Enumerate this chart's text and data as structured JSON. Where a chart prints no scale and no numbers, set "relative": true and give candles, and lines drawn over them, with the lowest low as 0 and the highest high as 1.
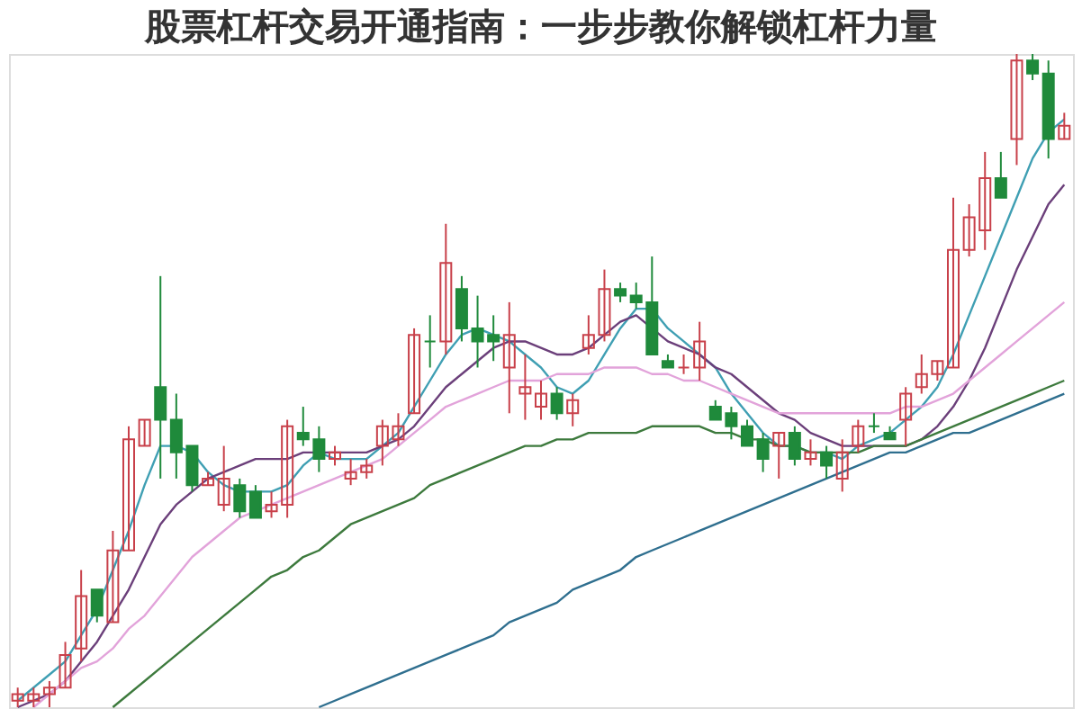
{
  "chart_data": {
    "type": "candlestick",
    "title": "股票杠杆交易开通指南：一步步教你解锁杠杆力量",
    "relative": true,
    "categories": [
      null,
      null,
      null,
      null,
      null,
      null,
      null,
      null,
      null,
      null,
      null,
      null,
      null,
      null,
      null,
      null,
      null,
      null,
      null,
      null,
      null,
      null,
      null,
      null,
      null,
      null,
      null,
      null,
      null,
      null,
      null,
      null,
      null,
      null,
      null,
      null,
      null,
      null,
      null,
      null,
      null,
      null,
      null,
      null,
      null,
      null,
      null,
      null,
      null,
      null,
      null,
      null,
      null,
      null,
      null,
      null,
      null,
      null,
      null,
      null,
      null,
      null,
      null,
      null,
      null,
      null,
      null
    ],
    "ohlc": [
      [
        0.01,
        0.03,
        0,
        0.02
      ],
      [
        0.01,
        0.03,
        0,
        0.02
      ],
      [
        0.02,
        0.04,
        0,
        0.03
      ],
      [
        0.03,
        0.1,
        0.03,
        0.08
      ],
      [
        0.09,
        0.21,
        0.07,
        0.17
      ],
      [
        0.18,
        0.18,
        0.13,
        0.14
      ],
      [
        0.13,
        0.27,
        0.13,
        0.24
      ],
      [
        0.24,
        0.43,
        0.24,
        0.41
      ],
      [
        0.4,
        0.44,
        0.4,
        0.44
      ],
      [
        0.49,
        0.66,
        0.35,
        0.44
      ],
      [
        0.44,
        0.48,
        0.35,
        0.39
      ],
      [
        0.4,
        0.4,
        0.33,
        0.34
      ],
      [
        0.34,
        0.36,
        0.34,
        0.35
      ],
      [
        0.31,
        0.4,
        0.3,
        0.35
      ],
      [
        0.34,
        0.35,
        0.29,
        0.3
      ],
      [
        0.33,
        0.34,
        0.29,
        0.29
      ],
      [
        0.3,
        0.33,
        0.29,
        0.31
      ],
      [
        0.31,
        0.44,
        0.29,
        0.43
      ],
      [
        0.42,
        0.46,
        0.4,
        0.41
      ],
      [
        0.41,
        0.43,
        0.36,
        0.38
      ],
      [
        0.38,
        0.4,
        0.37,
        0.39
      ],
      [
        0.35,
        0.38,
        0.34,
        0.36
      ],
      [
        0.36,
        0.38,
        0.35,
        0.37
      ],
      [
        0.4,
        0.44,
        0.37,
        0.43
      ],
      [
        0.41,
        0.45,
        0.4,
        0.43
      ],
      [
        0.45,
        0.58,
        0.45,
        0.57
      ],
      [
        0.56,
        0.6,
        0.52,
        0.56
      ],
      [
        0.56,
        0.74,
        0.54,
        0.68
      ],
      [
        0.64,
        0.66,
        0.56,
        0.58
      ],
      [
        0.58,
        0.63,
        0.52,
        0.56
      ],
      [
        0.57,
        0.6,
        0.53,
        0.56
      ],
      [
        0.52,
        0.62,
        0.45,
        0.57
      ],
      [
        0.48,
        0.54,
        0.44,
        0.49
      ],
      [
        0.46,
        0.5,
        0.44,
        0.48
      ],
      [
        0.48,
        0.49,
        0.44,
        0.45
      ],
      [
        0.45,
        0.48,
        0.43,
        0.47
      ],
      [
        0.55,
        0.6,
        0.54,
        0.57
      ],
      [
        0.57,
        0.67,
        0.56,
        0.64
      ],
      [
        0.64,
        0.65,
        0.62,
        0.63
      ],
      [
        0.63,
        0.65,
        0.61,
        0.62
      ],
      [
        0.62,
        0.69,
        0.54,
        0.54
      ],
      [
        0.53,
        0.54,
        0.52,
        0.52
      ],
      [
        0.52,
        0.54,
        0.51,
        0.52
      ],
      [
        0.52,
        0.59,
        0.5,
        0.56
      ],
      [
        0.46,
        0.47,
        0.44,
        0.44
      ],
      [
        0.45,
        0.46,
        0.41,
        0.43
      ],
      [
        0.43,
        0.44,
        0.4,
        0.4
      ],
      [
        0.41,
        0.42,
        0.36,
        0.38
      ],
      [
        0.4,
        0.42,
        0.35,
        0.42
      ],
      [
        0.42,
        0.43,
        0.37,
        0.38
      ],
      [
        0.38,
        0.41,
        0.37,
        0.39
      ],
      [
        0.39,
        0.4,
        0.35,
        0.37
      ],
      [
        0.35,
        0.41,
        0.33,
        0.39
      ],
      [
        0.4,
        0.44,
        0.39,
        0.43
      ],
      [
        0.43,
        0.45,
        0.42,
        0.43
      ],
      [
        0.42,
        0.43,
        0.41,
        0.41
      ],
      [
        0.44,
        0.49,
        0.4,
        0.48
      ],
      [
        0.49,
        0.54,
        0.48,
        0.51
      ],
      [
        0.51,
        0.53,
        0.5,
        0.53
      ],
      [
        0.52,
        0.78,
        0.52,
        0.7
      ],
      [
        0.7,
        0.77,
        0.69,
        0.75
      ],
      [
        0.73,
        0.85,
        0.7,
        0.81
      ],
      [
        0.81,
        0.85,
        0.78,
        0.78
      ],
      [
        0.87,
        1,
        0.83,
        0.99
      ],
      [
        0.99,
        1,
        0.96,
        0.97
      ],
      [
        0.97,
        0.99,
        0.84,
        0.87
      ],
      [
        0.87,
        0.91,
        0.87,
        0.89
      ]
    ],
    "colors": [
      "#c8404a",
      "#c8404a",
      "#c8404a",
      "#c8404a",
      "#c8404a",
      "#1f8a3b",
      "#c8404a",
      "#c8404a",
      "#c8404a",
      "#1f8a3b",
      "#1f8a3b",
      "#1f8a3b",
      "#c8404a",
      "#c8404a",
      "#1f8a3b",
      "#1f8a3b",
      "#c8404a",
      "#c8404a",
      "#1f8a3b",
      "#1f8a3b",
      "#c8404a",
      "#c8404a",
      "#c8404a",
      "#c8404a",
      "#c8404a",
      "#c8404a",
      "#1f8a3b",
      "#c8404a",
      "#1f8a3b",
      "#1f8a3b",
      "#1f8a3b",
      "#c8404a",
      "#c8404a",
      "#c8404a",
      "#1f8a3b",
      "#c8404a",
      "#c8404a",
      "#c8404a",
      "#1f8a3b",
      "#1f8a3b",
      "#1f8a3b",
      "#1f8a3b",
      "#c8404a",
      "#c8404a",
      "#1f8a3b",
      "#1f8a3b",
      "#1f8a3b",
      "#1f8a3b",
      "#c8404a",
      "#1f8a3b",
      "#c8404a",
      "#1f8a3b",
      "#c8404a",
      "#c8404a",
      "#1f8a3b",
      "#1f8a3b",
      "#c8404a",
      "#c8404a",
      "#c8404a",
      "#c8404a",
      "#c8404a",
      "#c8404a",
      "#1f8a3b",
      "#c8404a",
      "#1f8a3b",
      "#1f8a3b",
      "#c8404a"
    ],
    "series": [
      {
        "type": "line",
        "color": "#3f9fb3",
        "values": [
          0.01,
          0.03,
          0.05,
          0.07,
          0.11,
          0.15,
          0.21,
          0.27,
          0.34,
          0.4,
          0.4,
          0.39,
          0.36,
          0.34,
          0.33,
          0.33,
          0.33,
          0.34,
          0.37,
          0.39,
          0.38,
          0.38,
          0.38,
          0.4,
          0.42,
          0.46,
          0.5,
          0.54,
          0.57,
          0.58,
          0.57,
          0.56,
          0.54,
          0.52,
          0.49,
          0.48,
          0.5,
          0.54,
          0.58,
          0.61,
          0.61,
          0.58,
          0.56,
          0.54,
          0.52,
          0.48,
          0.45,
          0.42,
          0.4,
          0.4,
          0.39,
          0.39,
          0.38,
          0.4,
          0.41,
          0.42,
          0.44,
          0.46,
          0.49,
          0.54,
          0.6,
          0.66,
          0.72,
          0.78,
          0.84,
          0.88,
          0.9
        ]
      },
      {
        "type": "line",
        "color": "#6b3f7a",
        "values": [
          0,
          0.01,
          0.02,
          0.04,
          0.07,
          0.1,
          0.14,
          0.18,
          0.23,
          0.28,
          0.31,
          0.33,
          0.35,
          0.36,
          0.37,
          0.38,
          0.38,
          0.38,
          0.39,
          0.39,
          0.39,
          0.39,
          0.39,
          0.4,
          0.41,
          0.43,
          0.46,
          0.49,
          0.51,
          0.53,
          0.55,
          0.56,
          0.56,
          0.55,
          0.54,
          0.54,
          0.55,
          0.57,
          0.59,
          0.6,
          0.58,
          0.56,
          0.55,
          0.54,
          0.52,
          0.51,
          0.49,
          0.47,
          0.45,
          0.44,
          0.42,
          0.41,
          0.4,
          0.4,
          0.4,
          0.4,
          0.4,
          0.41,
          0.43,
          0.46,
          0.5,
          0.55,
          0.61,
          0.67,
          0.72,
          0.77,
          0.8
        ]
      },
      {
        "type": "line",
        "color": "#e2a3da",
        "values": [
          null,
          0,
          0.02,
          0.04,
          0.06,
          0.07,
          0.09,
          0.12,
          0.14,
          0.17,
          0.2,
          0.23,
          0.25,
          0.27,
          0.29,
          0.3,
          0.31,
          0.32,
          0.33,
          0.34,
          0.35,
          0.36,
          0.37,
          0.38,
          0.4,
          0.42,
          0.44,
          0.46,
          0.47,
          0.48,
          0.49,
          0.5,
          0.5,
          0.5,
          0.51,
          0.51,
          0.51,
          0.52,
          0.52,
          0.52,
          0.51,
          0.51,
          0.5,
          0.5,
          0.49,
          0.48,
          0.47,
          0.46,
          0.45,
          0.45,
          0.45,
          0.45,
          0.45,
          0.45,
          0.45,
          0.45,
          0.46,
          0.46,
          0.47,
          0.48,
          0.5,
          0.52,
          0.54,
          0.56,
          0.58,
          0.6,
          0.62
        ]
      },
      {
        "type": "line",
        "color": "#3d7a3d",
        "values": [
          null,
          null,
          null,
          null,
          null,
          null,
          0,
          0.02,
          0.04,
          0.06,
          0.08,
          0.1,
          0.12,
          0.14,
          0.16,
          0.18,
          0.2,
          0.21,
          0.23,
          0.24,
          0.26,
          0.28,
          0.29,
          0.3,
          0.31,
          0.32,
          0.34,
          0.35,
          0.36,
          0.37,
          0.38,
          0.39,
          0.4,
          0.4,
          0.41,
          0.41,
          0.42,
          0.42,
          0.42,
          0.42,
          0.43,
          0.43,
          0.43,
          0.43,
          0.42,
          0.42,
          0.41,
          0.41,
          0.4,
          0.4,
          0.39,
          0.39,
          0.39,
          0.39,
          0.4,
          0.4,
          0.4,
          0.41,
          0.42,
          0.43,
          0.44,
          0.45,
          0.46,
          0.47,
          0.48,
          0.49,
          0.5
        ]
      },
      {
        "type": "line",
        "color": "#2f6f8f",
        "values": [
          null,
          null,
          null,
          null,
          null,
          null,
          null,
          null,
          null,
          null,
          null,
          null,
          null,
          null,
          null,
          null,
          null,
          null,
          null,
          0,
          0.01,
          0.02,
          0.03,
          0.04,
          0.05,
          0.06,
          0.07,
          0.08,
          0.09,
          0.1,
          0.11,
          0.13,
          0.14,
          0.15,
          0.16,
          0.18,
          0.19,
          0.2,
          0.21,
          0.23,
          0.24,
          0.25,
          0.26,
          0.27,
          0.28,
          0.29,
          0.3,
          0.31,
          0.32,
          0.33,
          0.34,
          0.35,
          0.36,
          0.37,
          0.38,
          0.39,
          0.39,
          0.4,
          0.41,
          0.42,
          0.42,
          0.43,
          0.44,
          0.45,
          0.46,
          0.47,
          0.48
        ]
      }
    ]
  }
}
